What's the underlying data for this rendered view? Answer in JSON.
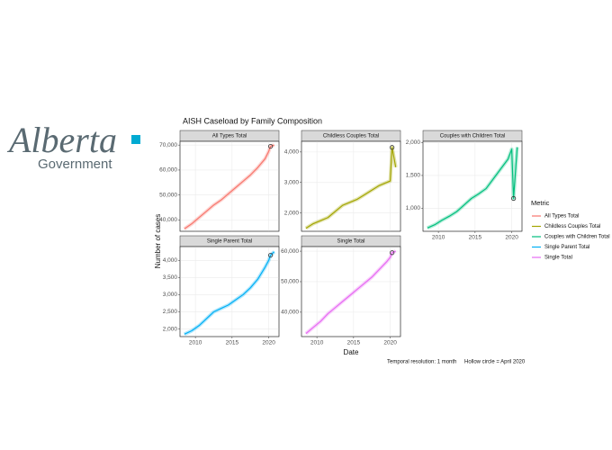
{
  "logo": {
    "name": "Alberta",
    "sub": "Government"
  },
  "figure": {
    "title": "AISH Caseload by Family Composition",
    "x_label": "Date",
    "y_label": "Number of cases",
    "legend_title": "Metric",
    "captions": [
      "Temporal resolution: 1 month",
      "Hollow circle = April 2020"
    ]
  },
  "chart_data": [
    {
      "type": "line",
      "title": "All Types Total",
      "grid": true,
      "highlight_x": 2020.25,
      "x": [
        2008.5,
        2009.5,
        2010.5,
        2011.5,
        2012.5,
        2013.5,
        2014.5,
        2015.5,
        2016.5,
        2017.5,
        2018.5,
        2019.5,
        2020.0,
        2020.25,
        2020.75
      ],
      "series": [
        {
          "name": "All Types Total",
          "color": "#f8766d",
          "values": [
            36500,
            38500,
            41000,
            43500,
            46000,
            48000,
            50500,
            53000,
            55500,
            58000,
            61000,
            64500,
            67500,
            69500,
            70000
          ]
        }
      ],
      "xlim": [
        2007.9,
        2021.4
      ],
      "ylim": [
        35500,
        71500
      ],
      "xticks": [
        2010,
        2015,
        2020
      ],
      "yticks": [
        {
          "value": 40000,
          "label": "40,000"
        },
        {
          "value": 50000,
          "label": "50,000"
        },
        {
          "value": 60000,
          "label": "60,000"
        },
        {
          "value": 70000,
          "label": "70,000"
        }
      ]
    },
    {
      "type": "line",
      "title": "Childless Couples Total",
      "grid": true,
      "highlight_x": 2020.25,
      "x": [
        2008.5,
        2009.5,
        2010.5,
        2011.5,
        2012.5,
        2013.5,
        2014.5,
        2015.5,
        2016.5,
        2017.5,
        2018.5,
        2019.5,
        2020.0,
        2020.25,
        2020.75
      ],
      "series": [
        {
          "name": "Childless Couples Total",
          "color": "#a3a500",
          "values": [
            1500,
            1650,
            1750,
            1850,
            2050,
            2250,
            2350,
            2450,
            2600,
            2750,
            2900,
            3000,
            3050,
            4150,
            3500
          ]
        }
      ],
      "xlim": [
        2007.9,
        2021.4
      ],
      "ylim": [
        1400,
        4350
      ],
      "xticks": [
        2010,
        2015,
        2020
      ],
      "yticks": [
        {
          "value": 2000,
          "label": "2,000"
        },
        {
          "value": 3000,
          "label": "3,000"
        },
        {
          "value": 4000,
          "label": "4,000"
        }
      ]
    },
    {
      "type": "line",
      "title": "Couples with Children Total",
      "grid": true,
      "highlight_x": 2020.25,
      "x": [
        2008.5,
        2009.5,
        2010.5,
        2011.5,
        2012.5,
        2013.5,
        2014.5,
        2015.5,
        2016.5,
        2017.5,
        2018.5,
        2019.5,
        2020.0,
        2020.25,
        2020.75
      ],
      "series": [
        {
          "name": "Couples with Children Total",
          "color": "#00bf7d",
          "values": [
            700,
            750,
            820,
            880,
            950,
            1050,
            1150,
            1220,
            1300,
            1450,
            1600,
            1750,
            1900,
            1150,
            1930
          ]
        }
      ],
      "xlim": [
        2007.9,
        2021.4
      ],
      "ylim": [
        650,
        2020
      ],
      "xticks": [
        2010,
        2015,
        2020
      ],
      "yticks": [
        {
          "value": 1000,
          "label": "1,000"
        },
        {
          "value": 1500,
          "label": "1,500"
        },
        {
          "value": 2000,
          "label": "2,000"
        }
      ]
    },
    {
      "type": "line",
      "title": "Single Parent Total",
      "grid": true,
      "highlight_x": 2020.25,
      "x": [
        2008.5,
        2009.5,
        2010.5,
        2011.5,
        2012.5,
        2013.5,
        2014.5,
        2015.5,
        2016.5,
        2017.5,
        2018.5,
        2019.5,
        2020.0,
        2020.25,
        2020.75
      ],
      "series": [
        {
          "name": "Single Parent Total",
          "color": "#00b0f6",
          "values": [
            1850,
            1950,
            2100,
            2300,
            2500,
            2600,
            2700,
            2850,
            3000,
            3200,
            3450,
            3800,
            4000,
            4150,
            4250
          ]
        }
      ],
      "xlim": [
        2007.9,
        2021.4
      ],
      "ylim": [
        1780,
        4400
      ],
      "xticks": [
        2010,
        2015,
        2020
      ],
      "yticks": [
        {
          "value": 2000,
          "label": "2,000"
        },
        {
          "value": 2500,
          "label": "2,500"
        },
        {
          "value": 3000,
          "label": "3,000"
        },
        {
          "value": 3500,
          "label": "3,500"
        },
        {
          "value": 4000,
          "label": "4,000"
        }
      ]
    },
    {
      "type": "line",
      "title": "Single Total",
      "grid": true,
      "highlight_x": 2020.25,
      "x": [
        2008.5,
        2009.5,
        2010.5,
        2011.5,
        2012.5,
        2013.5,
        2014.5,
        2015.5,
        2016.5,
        2017.5,
        2018.5,
        2019.5,
        2020.0,
        2020.25,
        2020.75
      ],
      "series": [
        {
          "name": "Single Total",
          "color": "#e76bf3",
          "values": [
            33000,
            35000,
            37000,
            39500,
            41500,
            43500,
            45500,
            47500,
            49500,
            51500,
            54000,
            56500,
            58000,
            59500,
            60000
          ]
        }
      ],
      "xlim": [
        2007.9,
        2021.4
      ],
      "ylim": [
        32000,
        61500
      ],
      "xticks": [
        2010,
        2015,
        2020
      ],
      "yticks": [
        {
          "value": 40000,
          "label": "40,000"
        },
        {
          "value": 50000,
          "label": "50,000"
        },
        {
          "value": 60000,
          "label": "60,000"
        }
      ]
    }
  ]
}
